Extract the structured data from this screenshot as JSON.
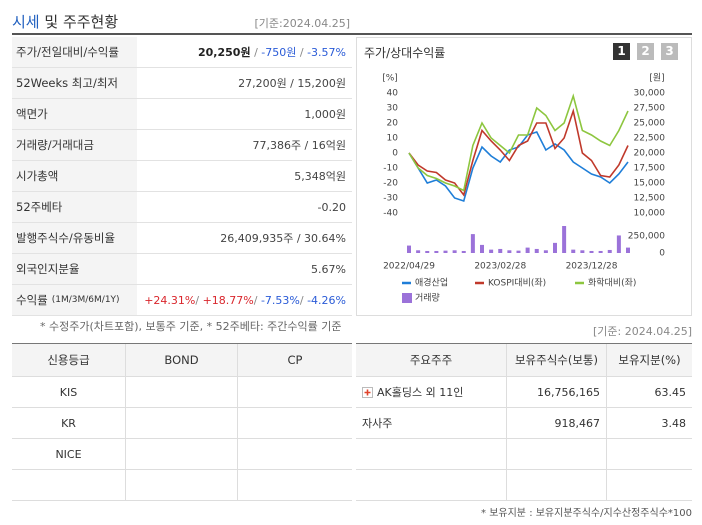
{
  "header": {
    "title_highlight": "시세",
    "title_rest": "및 주주현황",
    "date": "[기준:2024.04.25]"
  },
  "summary_table": {
    "rows": [
      {
        "label": "주가/전일대비/수익률",
        "value": [
          {
            "text": "20,250원",
            "color": "#222222",
            "bold": true
          },
          {
            "text": " / ",
            "color": "#888888"
          },
          {
            "text": "-750원",
            "color": "#2a5bd7"
          },
          {
            "text": " / ",
            "color": "#888888"
          },
          {
            "text": "-3.57%",
            "color": "#2a5bd7"
          }
        ]
      },
      {
        "label": "52Weeks 최고/최저",
        "value": [
          {
            "text": "27,200원 / 15,200원",
            "color": "#444444"
          }
        ]
      },
      {
        "label": "액면가",
        "value": [
          {
            "text": "1,000원",
            "color": "#444444"
          }
        ]
      },
      {
        "label": "거래량/거래대금",
        "value": [
          {
            "text": "77,386주 / 16억원",
            "color": "#444444"
          }
        ]
      },
      {
        "label": "시가총액",
        "value": [
          {
            "text": "5,348억원",
            "color": "#444444"
          }
        ]
      },
      {
        "label": "52주베타",
        "value": [
          {
            "text": "-0.20",
            "color": "#444444"
          }
        ]
      },
      {
        "label": "발행주식수/유동비율",
        "value": [
          {
            "text": "26,409,935주 / 30.64%",
            "color": "#444444"
          }
        ]
      },
      {
        "label": "외국인지분율",
        "value": [
          {
            "text": "5.67%",
            "color": "#444444"
          }
        ]
      },
      {
        "label": "수익률",
        "sublabel": "(1M/3M/6M/1Y)",
        "value": [
          {
            "text": "+24.31%",
            "color": "#d9262c"
          },
          {
            "text": "/ ",
            "color": "#888888"
          },
          {
            "text": "+18.77%",
            "color": "#d9262c"
          },
          {
            "text": "/ ",
            "color": "#888888"
          },
          {
            "text": "-7.53%",
            "color": "#2a5bd7"
          },
          {
            "text": "/ ",
            "color": "#888888"
          },
          {
            "text": "-4.26%",
            "color": "#2a5bd7"
          }
        ]
      }
    ],
    "note": "* 수정주가(차트포함), 보통주 기준, * 52주베타: 주간수익률 기준"
  },
  "chart_tabs": [
    "1",
    "2",
    "3"
  ],
  "chart_data": {
    "type": "line",
    "title": "주가/상대수익률",
    "y_unit": "[%]",
    "y2_unit": "[원]",
    "categories": [
      "2022/04/29",
      null,
      null,
      null,
      null,
      null,
      null,
      null,
      null,
      null,
      "2023/02/28",
      null,
      null,
      null,
      null,
      null,
      null,
      null,
      null,
      null,
      "2023/12/28",
      null,
      null,
      null,
      null
    ],
    "ylim": [
      -40,
      40
    ],
    "yticks": [
      40,
      30,
      20,
      10,
      0,
      -10,
      -20,
      -30,
      -40
    ],
    "y2lim": [
      10000,
      30000
    ],
    "y2ticks": [
      {
        "value": 30000,
        "label": "30,000"
      },
      {
        "value": 27500,
        "label": "27,500"
      },
      {
        "value": 25000,
        "label": "25,000"
      },
      {
        "value": 22500,
        "label": "22,500"
      },
      {
        "value": 20000,
        "label": "20,000"
      },
      {
        "value": 17500,
        "label": "17,500"
      },
      {
        "value": 15000,
        "label": "15,000"
      },
      {
        "value": 12500,
        "label": "12,500"
      },
      {
        "value": 10000,
        "label": "10,000"
      }
    ],
    "y3lim": [
      0,
      400000
    ],
    "y3ticks": [
      {
        "value": 250000,
        "label": "250,000"
      },
      0
    ],
    "series": [
      {
        "name": "애경산업",
        "color": "#1f7ed8",
        "type": "line",
        "axis": "y2",
        "values": [
          20000,
          17500,
          15000,
          15500,
          14500,
          12500,
          12000,
          17500,
          21000,
          19500,
          18500,
          20500,
          21000,
          23000,
          23500,
          20500,
          21500,
          20500,
          18500,
          17500,
          16500,
          16000,
          15000,
          16500,
          18500
        ]
      },
      {
        "name": "KOSPI대비(좌)",
        "color": "#c0392b",
        "type": "line",
        "axis": "y",
        "values": [
          0,
          -8,
          -12,
          -13,
          -18,
          -20,
          -28,
          -5,
          15,
          8,
          2,
          -5,
          5,
          8,
          20,
          20,
          3,
          10,
          28,
          0,
          -5,
          -15,
          -16,
          -8,
          5
        ]
      },
      {
        "name": "화학대비(좌)",
        "color": "#8dc63f",
        "type": "line",
        "axis": "y",
        "values": [
          0,
          -10,
          -15,
          -17,
          -20,
          -22,
          -25,
          5,
          20,
          10,
          5,
          0,
          12,
          12,
          30,
          25,
          15,
          20,
          38,
          15,
          12,
          8,
          5,
          15,
          28
        ]
      },
      {
        "name": "거래량",
        "color": "#9b72d9",
        "type": "bar",
        "axis": "y3",
        "values": [
          110000,
          40000,
          30000,
          30000,
          35000,
          40000,
          30000,
          280000,
          120000,
          50000,
          60000,
          40000,
          35000,
          80000,
          60000,
          40000,
          150000,
          400000,
          50000,
          40000,
          30000,
          30000,
          45000,
          260000,
          80000
        ]
      }
    ]
  },
  "credit_table": {
    "header": [
      "신용등급",
      "BOND",
      "CP"
    ],
    "rows": [
      [
        "KIS"
      ],
      [
        "KR"
      ],
      [
        "NICE"
      ]
    ]
  },
  "holder_table": {
    "date": "[기준: 2024.04.25]",
    "header": [
      "주요주주",
      "보유주식수(보통)",
      "보유지분(%)"
    ],
    "rows": [
      [
        "AK홀딩스 외 11인",
        "16,756,165",
        "63.45"
      ],
      [
        "자사주",
        "918,467",
        "3.48"
      ]
    ],
    "note": "* 보유지분 : 보유지분주식수/지수산정주식수*100"
  }
}
